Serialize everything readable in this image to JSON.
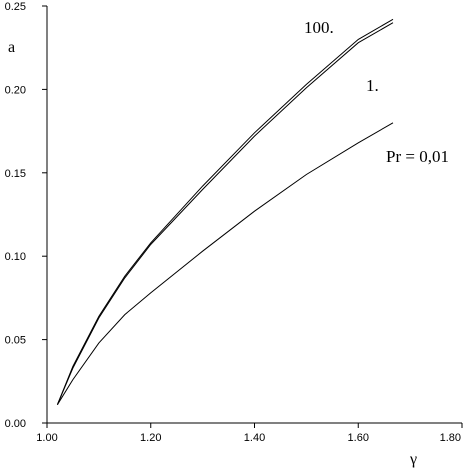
{
  "chart_data": {
    "type": "line",
    "title": "",
    "xlabel": "γ",
    "ylabel": "a",
    "xlim": [
      1.0,
      1.8
    ],
    "ylim": [
      0.0,
      0.25
    ],
    "xticks": [
      1.0,
      1.2,
      1.4,
      1.6,
      1.8
    ],
    "xtick_labels": [
      "1.00",
      "1.20",
      "1.40",
      "1.60",
      "1.80"
    ],
    "yticks": [
      0.0,
      0.05,
      0.1,
      0.15,
      0.2,
      0.25
    ],
    "ytick_labels": [
      "0.00",
      "0.05",
      "0.10",
      "0.15",
      "0.20",
      "0.25"
    ],
    "grid": false,
    "legend": "none",
    "series": [
      {
        "label": "100.",
        "x": [
          1.02,
          1.05,
          1.1,
          1.15,
          1.2,
          1.3,
          1.4,
          1.5,
          1.6,
          1.667
        ],
        "y": [
          0.011,
          0.034,
          0.064,
          0.088,
          0.108,
          0.142,
          0.174,
          0.203,
          0.23,
          0.242
        ]
      },
      {
        "label": "1.",
        "x": [
          1.02,
          1.05,
          1.1,
          1.15,
          1.2,
          1.3,
          1.4,
          1.5,
          1.6,
          1.667
        ],
        "y": [
          0.011,
          0.033,
          0.063,
          0.087,
          0.107,
          0.14,
          0.172,
          0.201,
          0.228,
          0.24
        ]
      },
      {
        "label": "Pr = 0,01",
        "x": [
          1.02,
          1.05,
          1.1,
          1.15,
          1.2,
          1.3,
          1.4,
          1.5,
          1.6,
          1.667
        ],
        "y": [
          0.011,
          0.026,
          0.048,
          0.065,
          0.078,
          0.103,
          0.127,
          0.149,
          0.168,
          0.18
        ]
      }
    ]
  }
}
